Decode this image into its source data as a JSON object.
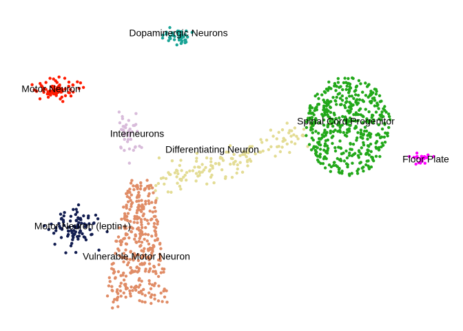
{
  "chart_data": {
    "type": "scatter",
    "title": "",
    "xlabel": "",
    "ylabel": "",
    "axes_visible": false,
    "grid": false,
    "legend": "none",
    "clusters": [
      {
        "label": "Dopaminergic Neurons",
        "color": "#1aa496",
        "center": [
          258,
          52
        ],
        "spread": [
          17,
          13
        ],
        "count": 45,
        "label_at": [
          259,
          49
        ]
      },
      {
        "label": "Motor Neuron",
        "color": "#ff1a00",
        "center": [
          82,
          128
        ],
        "spread": [
          25,
          13
        ],
        "count": 80,
        "label_at": [
          74,
          130
        ]
      },
      {
        "label": "Interneurons",
        "color": "#d8bbda",
        "center": [
          188,
          195
        ],
        "spread": [
          14,
          26
        ],
        "count": 40,
        "label_at": [
          199,
          195
        ]
      },
      {
        "label": "Differentiating Neuron",
        "color": "#e3dc94",
        "center": [
          325,
          222
        ],
        "spread": [
          85,
          25
        ],
        "count": 150,
        "label_at": [
          308,
          218
        ]
      },
      {
        "label": "Spinal Cord Progenitor",
        "color": "#22a81a",
        "center": [
          505,
          183
        ],
        "spread": [
          55,
          52
        ],
        "count": 480,
        "label_at": [
          502,
          177
        ]
      },
      {
        "label": "Floor Plate",
        "color": "#ff00ff",
        "center": [
          610,
          230
        ],
        "spread": [
          11,
          6
        ],
        "count": 20,
        "label_at": [
          618,
          232
        ]
      },
      {
        "label": "Motor Neuron (leptin+)",
        "color": "#111c50",
        "center": [
          108,
          327
        ],
        "spread": [
          25,
          21
        ],
        "count": 90,
        "label_at": [
          120,
          329
        ]
      },
      {
        "label": "Vulnerable Motor Neuron",
        "color": "#e08c66",
        "center": [
          200,
          360
        ],
        "spread": [
          33,
          58
        ],
        "count": 360,
        "label_at": [
          198,
          373
        ]
      }
    ]
  }
}
